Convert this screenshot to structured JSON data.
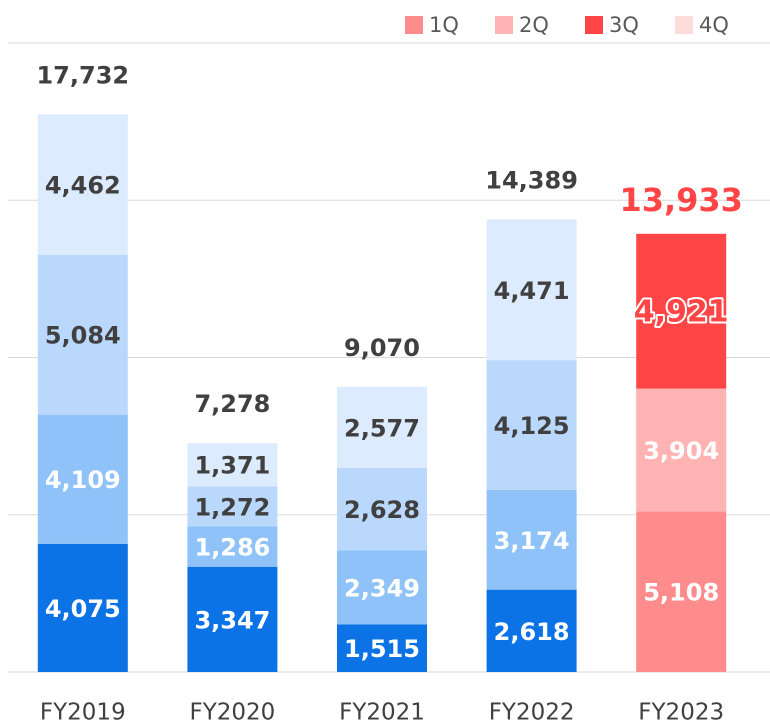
{
  "chart_data": {
    "type": "stacked_bar",
    "categories": [
      "FY2019",
      "FY2020",
      "FY2021",
      "FY2022",
      "FY2023"
    ],
    "highlight_index": 4,
    "series": [
      {
        "name": "1Q",
        "color": "#ff8c8c",
        "base_color": "#0b73e6",
        "label_color": "#ffffff",
        "highlight_label_color": "#ffffff",
        "values": [
          4075,
          3347,
          1515,
          2618,
          5108
        ],
        "value_labels": [
          "4,075",
          "3,347",
          "1,515",
          "2,618",
          "5,108"
        ]
      },
      {
        "name": "2Q",
        "color": "#ffb3b3",
        "base_color": "#8fc2f8",
        "label_color": "#ffffff",
        "highlight_label_color": "#ffffff",
        "values": [
          4109,
          1286,
          2349,
          3174,
          3904
        ],
        "value_labels": [
          "4,109",
          "1,286",
          "2,349",
          "3,174",
          "3,904"
        ]
      },
      {
        "name": "3Q",
        "color": "#ff4545",
        "base_color": "#b9d8fb",
        "label_color": "#404040",
        "highlight_label_color": "#ff4545",
        "values": [
          5084,
          1272,
          2628,
          4125,
          4921
        ],
        "value_labels": [
          "5,084",
          "1,272",
          "2,628",
          "4,125",
          "4,921"
        ]
      },
      {
        "name": "4Q",
        "color": "#ffdcdc",
        "base_color": "#dcebfd",
        "label_color": "#404040",
        "highlight_label_color": "#404040",
        "values": [
          4462,
          1371,
          2577,
          4471,
          null
        ],
        "value_labels": [
          "4,462",
          "1,371",
          "2,577",
          "4,471",
          null
        ]
      }
    ],
    "totals": [
      17732,
      7278,
      9070,
      14389,
      13933
    ],
    "total_labels": [
      "17,732",
      "7,278",
      "9,070",
      "14,389",
      "13,933"
    ],
    "total_color": "#404040",
    "highlight_total_color": "#ff4545",
    "ylim": [
      0,
      20000
    ],
    "yticks": [
      0,
      5000,
      10000,
      15000,
      20000
    ],
    "grid": true,
    "legend": "top-right"
  }
}
